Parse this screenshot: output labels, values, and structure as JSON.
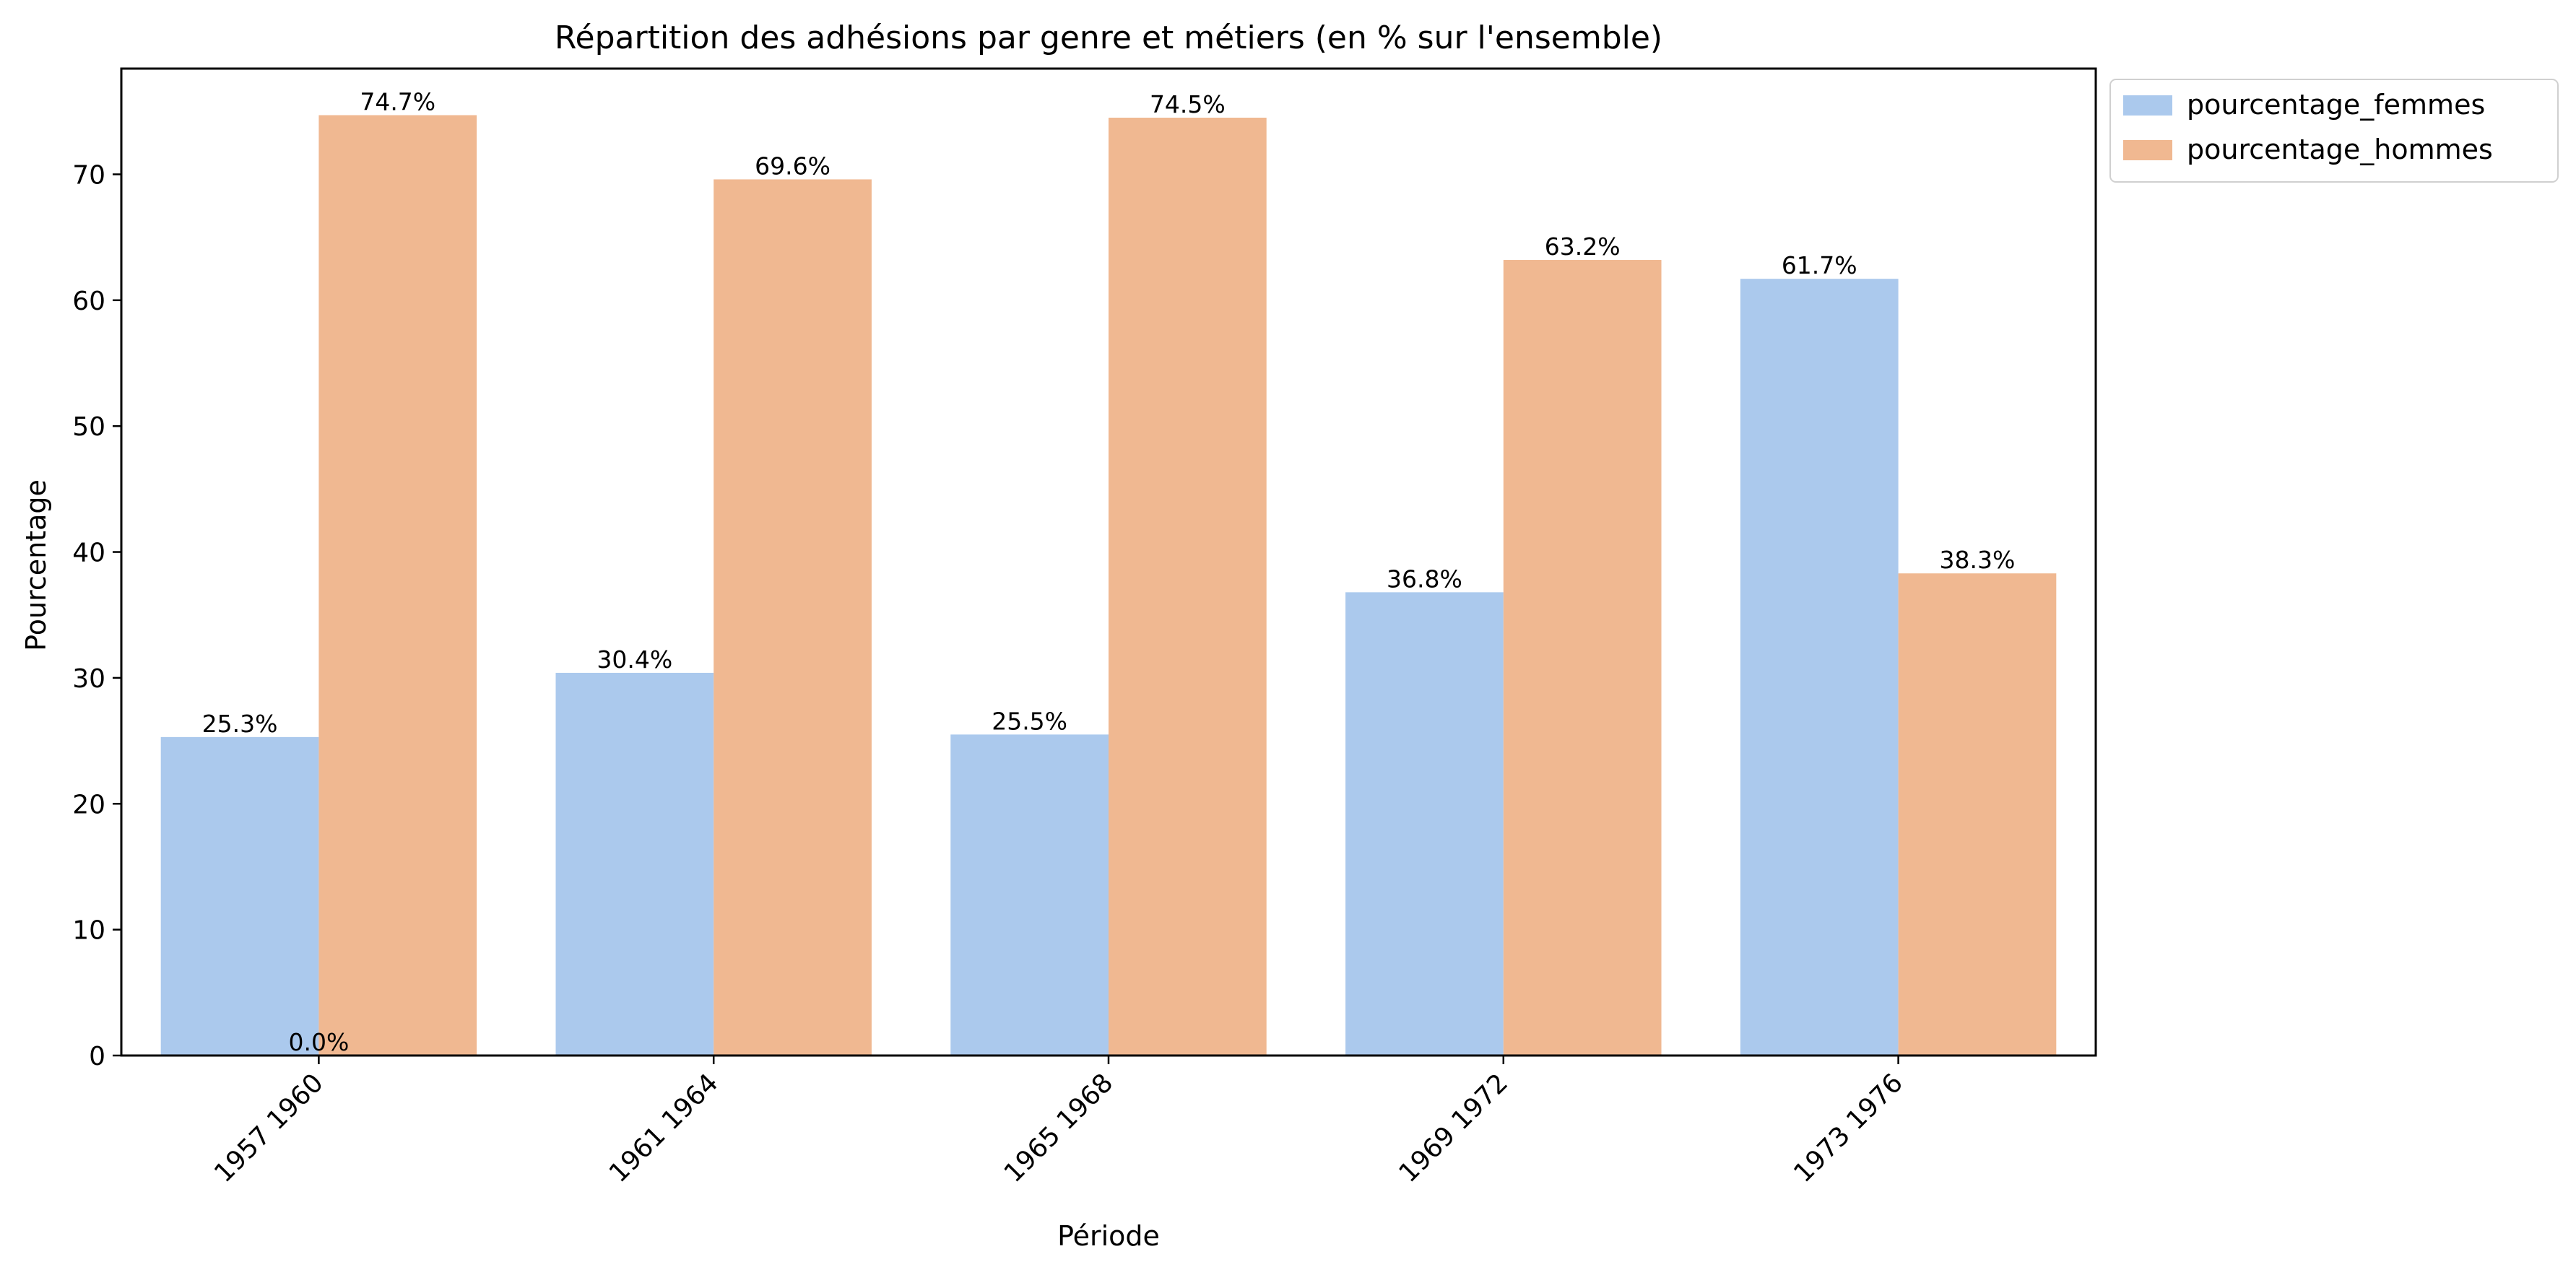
{
  "chart_data": {
    "type": "bar",
    "title": "Répartition des adhésions par genre et métiers  (en % sur l'ensemble)",
    "xlabel": "Période",
    "ylabel": "Pourcentage",
    "categories": [
      "1957 1960",
      "1961 1964",
      "1965 1968",
      "1969 1972",
      "1973 1976"
    ],
    "series": [
      {
        "name": "pourcentage_femmes",
        "color": "#abc9ed",
        "values": [
          25.3,
          30.4,
          25.5,
          36.8,
          61.7
        ]
      },
      {
        "name": "pourcentage_hommes",
        "color": "#f0b891",
        "values": [
          74.7,
          69.6,
          74.5,
          63.2,
          38.3
        ]
      }
    ],
    "bar_labels": [
      [
        "25.3%",
        "30.4%",
        "25.5%",
        "36.8%",
        "61.7%"
      ],
      [
        "74.7%",
        "69.6%",
        "74.5%",
        "63.2%",
        "38.3%"
      ]
    ],
    "extra_labels": [
      {
        "text": "0.0%",
        "category_index": 0,
        "value": 0
      }
    ],
    "y_ticks": [
      0,
      10,
      20,
      30,
      40,
      50,
      60,
      70
    ],
    "ylim": [
      0,
      78.4
    ],
    "grid": false,
    "legend_position": "outside-top-right"
  }
}
